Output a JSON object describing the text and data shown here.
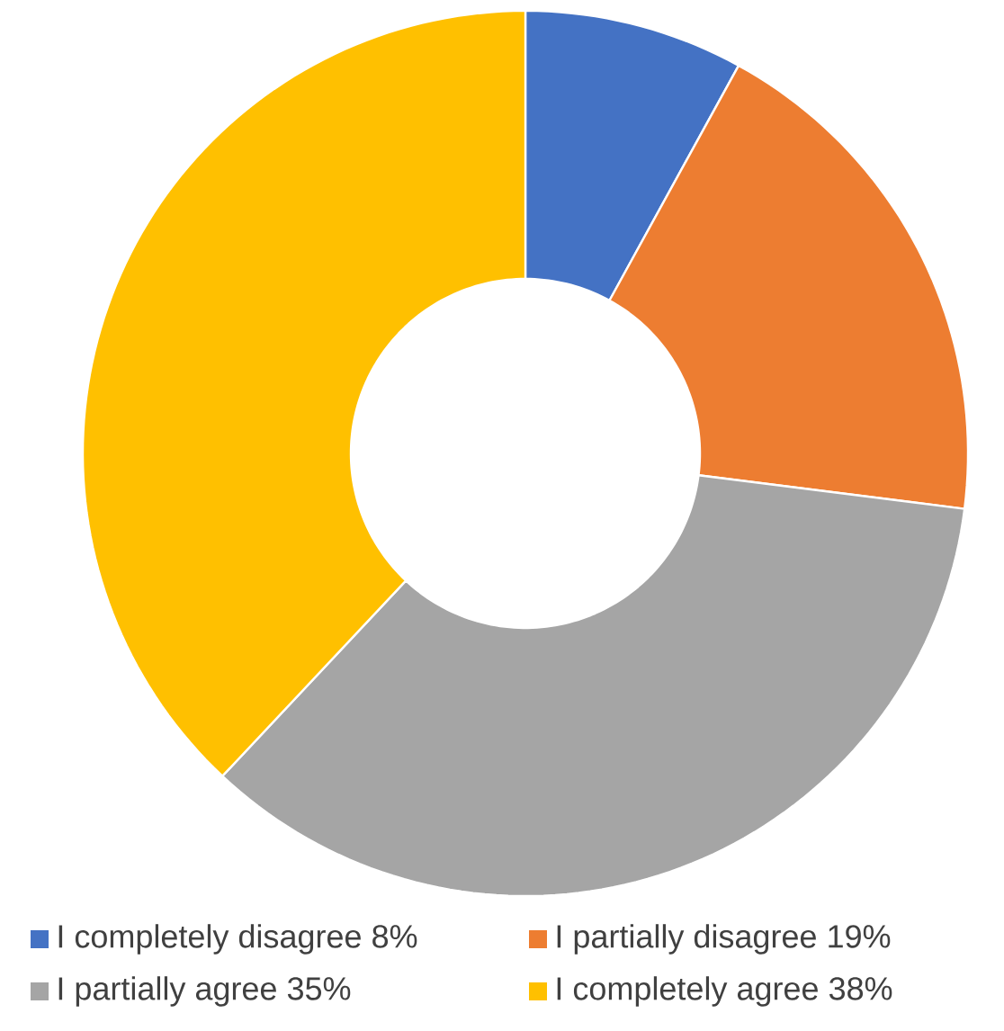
{
  "chart_data": {
    "type": "donut",
    "categories": [
      "I completely disagree",
      "I partially disagree",
      "I partially agree",
      "I completely agree"
    ],
    "values": [
      8,
      19,
      35,
      38
    ],
    "value_labels": [
      "8%",
      "19%",
      "35%",
      "38%"
    ],
    "colors": [
      "#4472c4",
      "#ed7d31",
      "#a5a5a5",
      "#ffc000"
    ],
    "legend": "bottom"
  }
}
